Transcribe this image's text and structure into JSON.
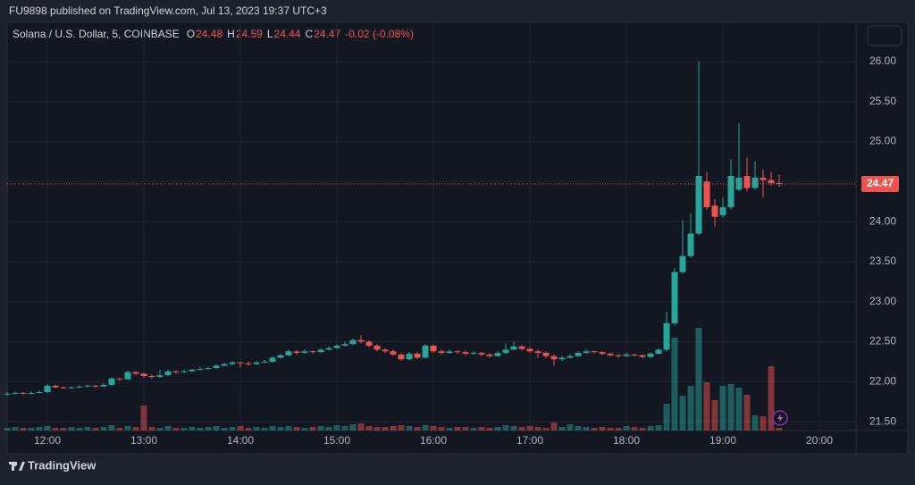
{
  "header": {
    "published": "FU9898 published on TradingView.com, Jul 13, 2023 19:37 UTC+3"
  },
  "footer": {
    "brand": "TradingView"
  },
  "chart_data": {
    "type": "candlestick",
    "symbol": "Solana / U.S. Dollar, 5, COINBASE",
    "legend_labels": [
      "O",
      "H",
      "L",
      "C"
    ],
    "change": "-0.02 (-0.08%)",
    "up_color": "#26a69a",
    "down_color": "#ef5350",
    "grid": true,
    "ylim": [
      21.39,
      26.49
    ],
    "yticks": [
      {
        "value": 21.5,
        "label": "21.50"
      },
      {
        "value": 22,
        "label": "22.00"
      },
      {
        "value": 22.5,
        "label": "22.50"
      },
      {
        "value": 23,
        "label": "23.00"
      },
      {
        "value": 23.5,
        "label": "23.50"
      },
      {
        "value": 24,
        "label": "24.00"
      },
      {
        "value": 24.5,
        "label": "24.50"
      },
      {
        "value": 25,
        "label": "25.00"
      },
      {
        "value": 25.5,
        "label": "25.50"
      },
      {
        "value": 26,
        "label": "26.00"
      }
    ],
    "xticks": [
      "12:00",
      "13:00",
      "14:00",
      "15:00",
      "16:00",
      "17:00",
      "18:00",
      "19:00",
      "20:00"
    ],
    "x": [
      "11:35",
      "11:40",
      "11:45",
      "11:50",
      "11:55",
      "12:00",
      "12:05",
      "12:10",
      "12:15",
      "12:20",
      "12:25",
      "12:30",
      "12:35",
      "12:40",
      "12:45",
      "12:50",
      "12:55",
      "13:00",
      "13:05",
      "13:10",
      "13:15",
      "13:20",
      "13:25",
      "13:30",
      "13:35",
      "13:40",
      "13:45",
      "13:50",
      "13:55",
      "14:00",
      "14:05",
      "14:10",
      "14:15",
      "14:20",
      "14:25",
      "14:30",
      "14:35",
      "14:40",
      "14:45",
      "14:50",
      "14:55",
      "15:00",
      "15:05",
      "15:10",
      "15:15",
      "15:20",
      "15:25",
      "15:30",
      "15:35",
      "15:40",
      "15:45",
      "15:50",
      "15:55",
      "16:00",
      "16:05",
      "16:10",
      "16:15",
      "16:20",
      "16:25",
      "16:30",
      "16:35",
      "16:40",
      "16:45",
      "16:50",
      "16:55",
      "17:00",
      "17:05",
      "17:10",
      "17:15",
      "17:20",
      "17:25",
      "17:30",
      "17:35",
      "17:40",
      "17:45",
      "17:50",
      "17:55",
      "18:00",
      "18:05",
      "18:10",
      "18:15",
      "18:20",
      "18:25",
      "18:30",
      "18:35",
      "18:40",
      "18:45",
      "18:50",
      "18:55",
      "19:00",
      "19:05",
      "19:10",
      "19:15",
      "19:20",
      "19:25",
      "19:30",
      "19:35"
    ],
    "open": [
      21.84,
      21.85,
      21.86,
      21.85,
      21.86,
      21.87,
      21.95,
      21.93,
      21.92,
      21.93,
      21.94,
      21.95,
      21.94,
      21.96,
      22.04,
      22.03,
      22.12,
      22.1,
      22.07,
      22.06,
      22.08,
      22.13,
      22.12,
      22.13,
      22.15,
      22.16,
      22.17,
      22.2,
      22.22,
      22.24,
      22.23,
      22.22,
      22.24,
      22.25,
      22.3,
      22.33,
      22.38,
      22.36,
      22.38,
      22.37,
      22.4,
      22.42,
      22.45,
      22.47,
      22.52,
      22.5,
      22.45,
      22.4,
      22.38,
      22.34,
      22.28,
      22.35,
      22.3,
      22.45,
      22.38,
      22.36,
      22.38,
      22.37,
      22.35,
      22.36,
      22.34,
      22.32,
      22.36,
      22.4,
      22.44,
      22.41,
      22.38,
      22.36,
      22.32,
      22.28,
      22.3,
      22.32,
      22.36,
      22.38,
      22.37,
      22.35,
      22.33,
      22.32,
      22.34,
      22.33,
      22.31,
      22.35,
      22.4,
      22.73,
      23.37,
      23.57,
      23.85,
      24.5,
      24.2,
      24.08,
      24.18,
      24.4,
      24.57,
      24.42,
      24.55,
      24.52,
      24.48
    ],
    "high": [
      21.87,
      21.88,
      21.87,
      21.88,
      21.89,
      21.97,
      21.96,
      21.94,
      21.94,
      21.95,
      21.96,
      21.96,
      21.98,
      22.06,
      22.05,
      22.14,
      22.13,
      22.11,
      22.09,
      22.15,
      22.15,
      22.14,
      22.15,
      22.16,
      22.18,
      22.19,
      22.22,
      22.24,
      22.26,
      22.25,
      22.25,
      22.26,
      22.27,
      22.32,
      22.35,
      22.4,
      22.39,
      22.4,
      22.39,
      22.42,
      22.44,
      22.47,
      22.5,
      22.54,
      22.58,
      22.52,
      22.47,
      22.42,
      22.4,
      22.36,
      22.37,
      22.37,
      22.47,
      22.46,
      22.4,
      22.4,
      22.39,
      22.39,
      22.38,
      22.37,
      22.36,
      22.38,
      22.48,
      22.5,
      22.46,
      22.43,
      22.4,
      22.38,
      22.34,
      22.32,
      22.34,
      22.38,
      22.4,
      22.39,
      22.38,
      22.36,
      22.35,
      22.36,
      22.35,
      22.34,
      22.37,
      22.42,
      22.88,
      23.42,
      24.02,
      24.1,
      26.0,
      24.62,
      24.28,
      24.3,
      24.78,
      25.23,
      24.8,
      24.75,
      24.65,
      24.62,
      24.59
    ],
    "low": [
      21.83,
      21.84,
      21.84,
      21.84,
      21.85,
      21.86,
      21.92,
      21.91,
      21.91,
      21.92,
      21.93,
      21.93,
      21.93,
      21.95,
      22.01,
      22.02,
      22.08,
      22.05,
      22.04,
      22.05,
      22.07,
      22.1,
      22.11,
      22.12,
      22.14,
      22.15,
      22.16,
      22.19,
      22.21,
      22.18,
      22.2,
      22.21,
      22.23,
      22.24,
      22.29,
      22.32,
      22.34,
      22.35,
      22.35,
      22.36,
      22.39,
      22.41,
      22.44,
      22.46,
      22.48,
      22.43,
      22.38,
      22.36,
      22.32,
      22.26,
      22.27,
      22.28,
      22.29,
      22.36,
      22.34,
      22.35,
      22.35,
      22.33,
      22.34,
      22.32,
      22.3,
      22.31,
      22.35,
      22.39,
      22.39,
      22.36,
      22.3,
      22.3,
      22.2,
      22.26,
      22.29,
      22.31,
      22.35,
      22.35,
      22.33,
      22.31,
      22.3,
      22.31,
      22.31,
      22.29,
      22.3,
      22.34,
      22.38,
      22.7,
      23.35,
      23.55,
      23.83,
      24.15,
      23.94,
      24.05,
      24.15,
      24.38,
      24.38,
      24.4,
      24.3,
      24.45,
      24.44
    ],
    "close": [
      21.85,
      21.86,
      21.85,
      21.86,
      21.87,
      21.95,
      21.93,
      21.92,
      21.93,
      21.94,
      21.95,
      21.94,
      21.96,
      22.04,
      22.03,
      22.12,
      22.1,
      22.07,
      22.06,
      22.08,
      22.13,
      22.12,
      22.13,
      22.15,
      22.16,
      22.17,
      22.2,
      22.22,
      22.24,
      22.23,
      22.22,
      22.24,
      22.25,
      22.3,
      22.33,
      22.38,
      22.36,
      22.38,
      22.37,
      22.4,
      22.42,
      22.45,
      22.47,
      22.52,
      22.5,
      22.45,
      22.4,
      22.38,
      22.34,
      22.28,
      22.35,
      22.3,
      22.45,
      22.38,
      22.36,
      22.38,
      22.37,
      22.35,
      22.36,
      22.34,
      22.32,
      22.36,
      22.4,
      22.44,
      22.41,
      22.38,
      22.36,
      22.32,
      22.28,
      22.3,
      22.32,
      22.36,
      22.38,
      22.37,
      22.35,
      22.33,
      22.32,
      22.34,
      22.33,
      22.31,
      22.35,
      22.4,
      22.73,
      23.37,
      23.57,
      23.85,
      24.57,
      24.18,
      24.06,
      24.18,
      24.57,
      24.55,
      24.42,
      24.55,
      24.52,
      24.48,
      24.47
    ],
    "volume": [
      3,
      4,
      3,
      3,
      4,
      5,
      3,
      3,
      4,
      3,
      4,
      3,
      4,
      6,
      3,
      5,
      4,
      28,
      4,
      3,
      5,
      3,
      3,
      4,
      3,
      4,
      5,
      3,
      4,
      5,
      3,
      4,
      3,
      5,
      4,
      5,
      4,
      3,
      4,
      5,
      4,
      6,
      5,
      7,
      8,
      5,
      4,
      4,
      5,
      6,
      5,
      4,
      6,
      5,
      4,
      3,
      4,
      4,
      3,
      4,
      3,
      4,
      6,
      5,
      4,
      5,
      4,
      3,
      9,
      4,
      7,
      5,
      4,
      3,
      4,
      3,
      3,
      5,
      4,
      3,
      5,
      6,
      30,
      104,
      39,
      50,
      115,
      54,
      34,
      50,
      52,
      48,
      40,
      17,
      16,
      72,
      3
    ]
  }
}
